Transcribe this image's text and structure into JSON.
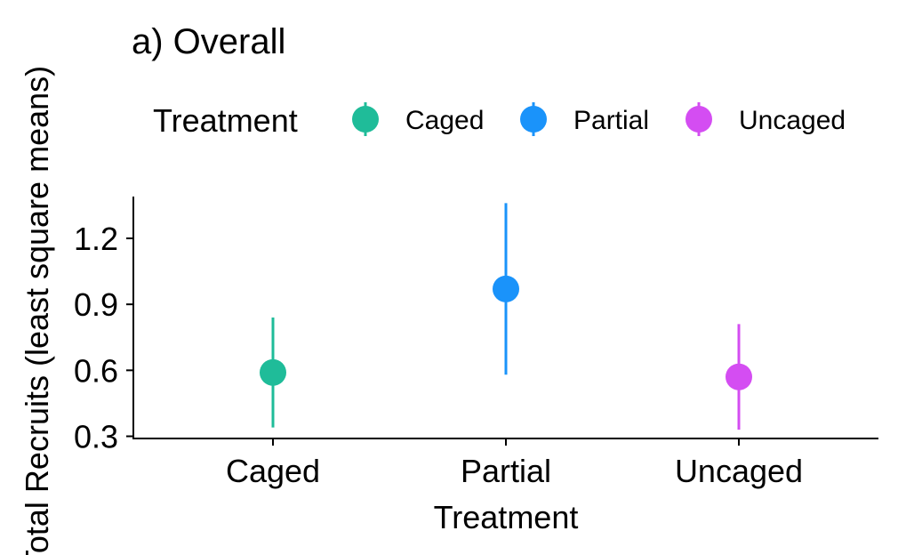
{
  "chart_data": {
    "type": "scatter",
    "title": "a) Overall",
    "xlabel": "Treatment",
    "ylabel": "Total Recruits (least square means)",
    "categories": [
      "Caged",
      "Partial",
      "Uncaged"
    ],
    "series": [
      {
        "name": "Caged",
        "x": "Caged",
        "y": 0.59,
        "lower": 0.34,
        "upper": 0.84,
        "color": "#1fbc99"
      },
      {
        "name": "Partial",
        "x": "Partial",
        "y": 0.97,
        "lower": 0.58,
        "upper": 1.36,
        "color": "#1a93fa"
      },
      {
        "name": "Uncaged",
        "x": "Uncaged",
        "y": 0.57,
        "lower": 0.33,
        "upper": 0.81,
        "color": "#d44df2"
      }
    ],
    "yticks": [
      "0.3",
      "0.6",
      "0.9",
      "1.2"
    ],
    "ylim": [
      0.29,
      1.39
    ],
    "grid": false,
    "legend": {
      "title": "Treatment",
      "placement": "top",
      "entries": [
        "Caged",
        "Partial",
        "Uncaged"
      ]
    }
  }
}
